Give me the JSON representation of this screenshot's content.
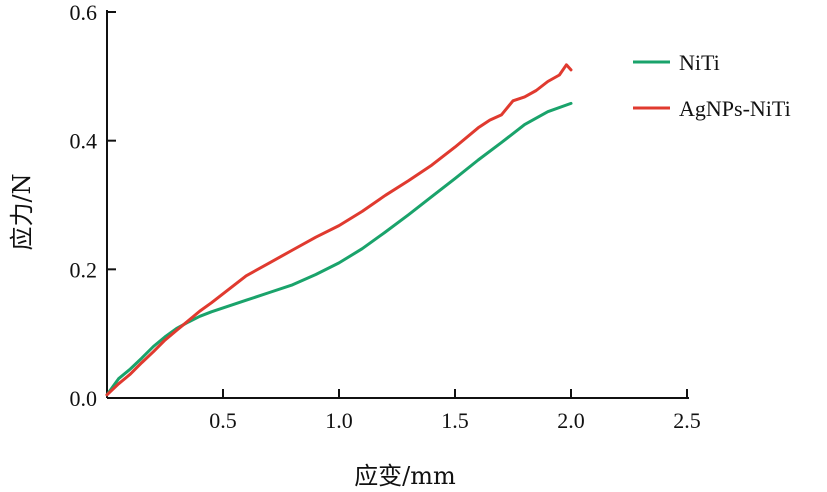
{
  "chart_data": {
    "type": "line",
    "xlabel": "应变/mm",
    "ylabel": "应力/N",
    "xlim": [
      0,
      2.5
    ],
    "ylim": [
      0,
      0.6
    ],
    "xticks": [
      "0.5",
      "1.0",
      "1.5",
      "2.0",
      "2.5"
    ],
    "yticks": [
      "0.0",
      "0.2",
      "0.4",
      "0.6"
    ],
    "legend_position": "top-right",
    "grid": false,
    "series": [
      {
        "name": "NiTi",
        "color": "#1aa36b",
        "x": [
          0,
          0.05,
          0.1,
          0.15,
          0.2,
          0.25,
          0.3,
          0.35,
          0.4,
          0.45,
          0.5,
          0.6,
          0.7,
          0.8,
          0.9,
          1.0,
          1.1,
          1.2,
          1.3,
          1.4,
          1.5,
          1.6,
          1.7,
          1.8,
          1.9,
          2.0
        ],
        "y": [
          0.005,
          0.03,
          0.045,
          0.062,
          0.08,
          0.095,
          0.108,
          0.118,
          0.127,
          0.134,
          0.14,
          0.152,
          0.164,
          0.176,
          0.192,
          0.21,
          0.232,
          0.258,
          0.285,
          0.313,
          0.341,
          0.37,
          0.397,
          0.425,
          0.445,
          0.458
        ]
      },
      {
        "name": "AgNPs-NiTi",
        "color": "#e03a2f",
        "x": [
          0,
          0.05,
          0.1,
          0.15,
          0.2,
          0.25,
          0.3,
          0.35,
          0.4,
          0.45,
          0.5,
          0.6,
          0.7,
          0.8,
          0.9,
          1.0,
          1.1,
          1.2,
          1.3,
          1.4,
          1.5,
          1.6,
          1.65,
          1.7,
          1.75,
          1.8,
          1.85,
          1.9,
          1.95,
          1.98,
          2.0
        ],
        "y": [
          0.005,
          0.022,
          0.037,
          0.055,
          0.072,
          0.09,
          0.105,
          0.12,
          0.135,
          0.148,
          0.162,
          0.19,
          0.21,
          0.23,
          0.25,
          0.268,
          0.29,
          0.315,
          0.338,
          0.362,
          0.39,
          0.42,
          0.432,
          0.44,
          0.462,
          0.468,
          0.478,
          0.492,
          0.502,
          0.518,
          0.51
        ]
      }
    ]
  }
}
